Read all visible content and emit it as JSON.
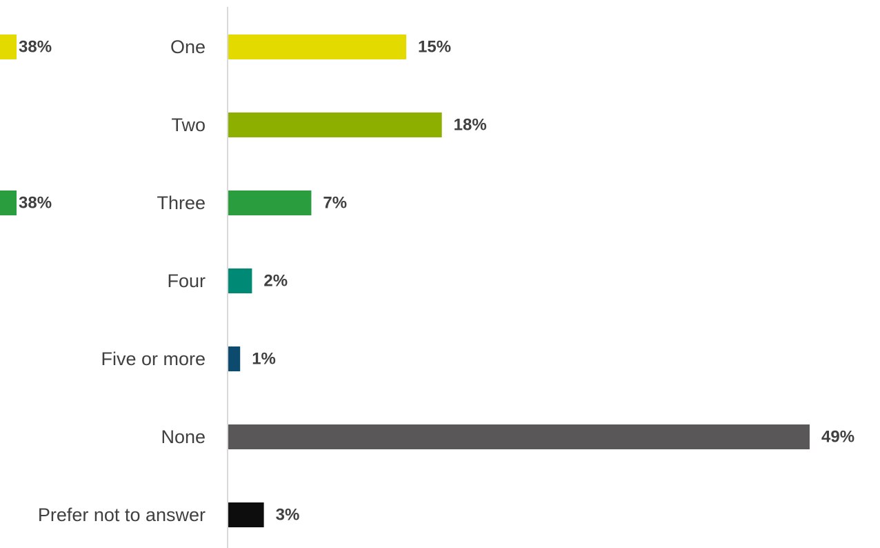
{
  "chart_data": {
    "type": "bar",
    "orientation": "horizontal",
    "categories": [
      "One",
      "Two",
      "Three",
      "Four",
      "Five or more",
      "None",
      "Prefer not to answer"
    ],
    "values": [
      15,
      18,
      7,
      2,
      1,
      49,
      3
    ],
    "value_labels": [
      "15%",
      "18%",
      "7%",
      "2%",
      "1%",
      "49%",
      "3%"
    ],
    "colors": [
      "#E3DB00",
      "#8DB000",
      "#2A9D3E",
      "#008A76",
      "#0C4A6E",
      "#595757",
      "#0D0D0D"
    ],
    "xlim": [
      0,
      49
    ],
    "grid": false,
    "legend": "none",
    "title": "",
    "xlabel": "",
    "ylabel": "",
    "side_fragments": [
      {
        "label": "38%",
        "color": "#E3DB00",
        "row": 0
      },
      {
        "label": "38%",
        "color": "#2A9D3E",
        "row": 2
      }
    ]
  }
}
